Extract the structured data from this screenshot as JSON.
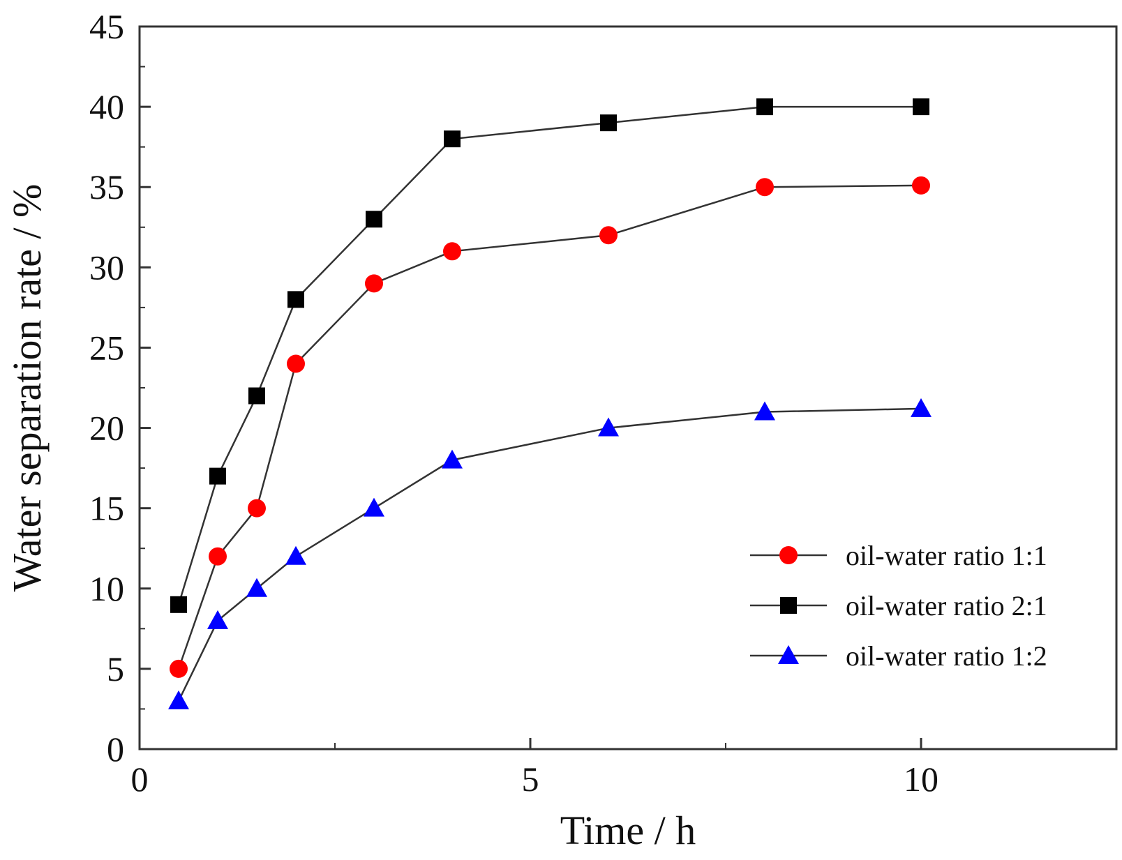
{
  "chart_data": {
    "type": "line",
    "title": "",
    "xlabel": "Time / h",
    "ylabel": "Water separation rate / %",
    "xlim": [
      0,
      12.5
    ],
    "ylim": [
      0,
      45
    ],
    "x_ticks": [
      0,
      5,
      10
    ],
    "x_tick_labels": [
      "0",
      "5",
      "10"
    ],
    "x_minor_ticks": [
      2.5,
      7.5
    ],
    "y_ticks": [
      0,
      5,
      10,
      15,
      20,
      25,
      30,
      35,
      40,
      45
    ],
    "y_tick_labels": [
      "0",
      "5",
      "10",
      "15",
      "20",
      "25",
      "30",
      "35",
      "40",
      "45"
    ],
    "grid": false,
    "legend_position": "lower-right",
    "series": [
      {
        "name": "oil-water ratio 1:1",
        "marker": "circle",
        "color": "#ff0000",
        "x": [
          0.5,
          1,
          1.5,
          2,
          3,
          4,
          6,
          8,
          10
        ],
        "values": [
          5,
          12,
          15,
          24,
          29,
          31,
          32,
          35,
          35.1
        ]
      },
      {
        "name": "oil-water ratio 2:1",
        "marker": "square",
        "color": "#000000",
        "x": [
          0.5,
          1,
          1.5,
          2,
          3,
          4,
          6,
          8,
          10
        ],
        "values": [
          9,
          17,
          22,
          28,
          33,
          38,
          39,
          40,
          40
        ]
      },
      {
        "name": "oil-water ratio 1:2",
        "marker": "triangle",
        "color": "#0000ff",
        "x": [
          0.5,
          1,
          1.5,
          2,
          3,
          4,
          6,
          8,
          10
        ],
        "values": [
          3,
          8,
          10,
          12,
          15,
          18,
          20,
          21,
          21.2
        ]
      }
    ]
  }
}
